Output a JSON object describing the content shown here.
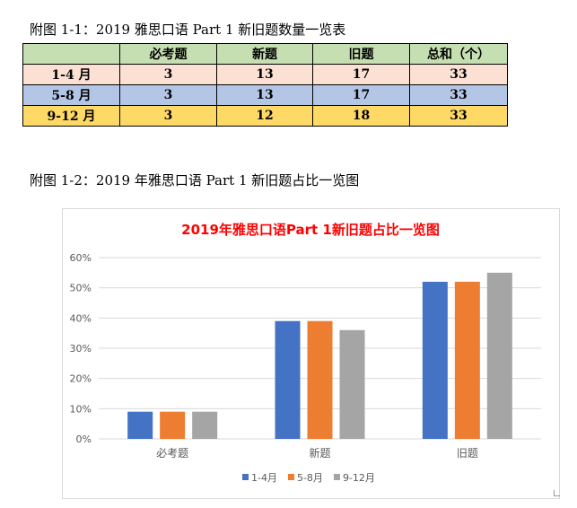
{
  "captions": {
    "table": "附图 1-1：2019 雅思口语 Part 1 新旧题数量一览表",
    "chart": "附图 1-2：2019 年雅思口语 Part 1 新旧题占比一览图"
  },
  "table": {
    "headers": [
      "",
      "必考题",
      "新题",
      "旧题",
      "总和（个）"
    ],
    "rows": [
      [
        "1-4 月",
        "3",
        "13",
        "17",
        "33"
      ],
      [
        "5-8 月",
        "3",
        "13",
        "17",
        "33"
      ],
      [
        "9-12 月",
        "3",
        "12",
        "18",
        "33"
      ]
    ]
  },
  "colors": {
    "series": [
      "#4472c4",
      "#ed7d31",
      "#a5a5a5"
    ],
    "title": "#ff0000",
    "grid": "#d9d9d9",
    "axis_text": "#595959"
  },
  "chart_data": {
    "type": "bar",
    "title": "2019年雅思口语Part 1新旧题占比一览图",
    "categories": [
      "必考题",
      "新题",
      "旧题"
    ],
    "series": [
      {
        "name": "1-4月",
        "values": [
          9,
          39,
          52
        ]
      },
      {
        "name": "5-8月",
        "values": [
          9,
          39,
          52
        ]
      },
      {
        "name": "9-12月",
        "values": [
          9,
          36,
          55
        ]
      }
    ],
    "ylim": [
      0,
      60
    ],
    "yticks": [
      "0%",
      "10%",
      "20%",
      "30%",
      "40%",
      "50%",
      "60%"
    ],
    "grid": true,
    "legend": "bottom"
  }
}
